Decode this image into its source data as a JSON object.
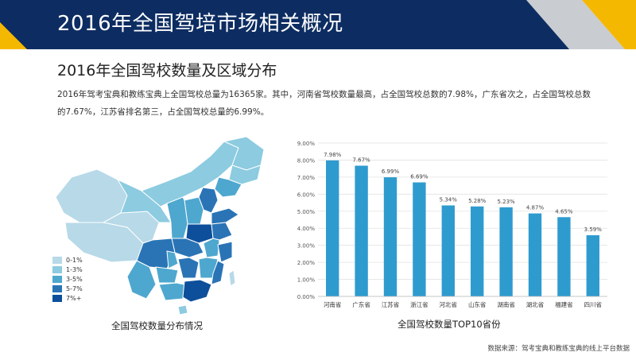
{
  "header": {
    "title": "2016年全国驾培市场相关概况",
    "colors": {
      "navy": "#0d2d62",
      "gold": "#f5b800",
      "gray": "#c9ccd1"
    }
  },
  "section": {
    "title": "2016年全国驾校数量及区域分布",
    "description": "2016年驾考宝典和教练宝典上全国驾校总量为16365家。其中，河南省驾校数量最高，占全国驾校总数的7.98%，广东省次之，占全国驾校总数的7.67%，江苏省排名第三，占全国驾校总量的6.99%。"
  },
  "map": {
    "caption": "全国驾校数量分布情况",
    "legend": [
      {
        "label": "0-1%",
        "color": "#b7d9e8"
      },
      {
        "label": "1-3%",
        "color": "#8ccbe0"
      },
      {
        "label": "3-5%",
        "color": "#4ea7cf"
      },
      {
        "label": "5-7%",
        "color": "#2a74b6"
      },
      {
        "label": "7%+",
        "color": "#0d4f9a"
      }
    ]
  },
  "chart_data": {
    "type": "bar",
    "title": "全国驾校数量TOP10省份",
    "categories": [
      "河南省",
      "广东省",
      "江苏省",
      "浙江省",
      "河北省",
      "山东省",
      "湖南省",
      "湖北省",
      "福建省",
      "四川省"
    ],
    "values": [
      7.98,
      7.67,
      6.99,
      6.69,
      5.34,
      5.28,
      5.23,
      4.87,
      4.65,
      3.59
    ],
    "data_labels": [
      "7.98%",
      "7.67%",
      "6.99%",
      "6.69%",
      "5.34%",
      "5.28%",
      "5.23%",
      "4.87%",
      "4.65%",
      "3.59%"
    ],
    "ylim": [
      0,
      9
    ],
    "yticks": [
      "0.00%",
      "1.00%",
      "2.00%",
      "3.00%",
      "4.00%",
      "5.00%",
      "6.00%",
      "7.00%",
      "8.00%",
      "9.00%"
    ],
    "bar_color": "#2e9bcf",
    "grid": true
  },
  "footer": {
    "source": "数据来源：驾考宝典和教练宝典的线上平台数据"
  }
}
